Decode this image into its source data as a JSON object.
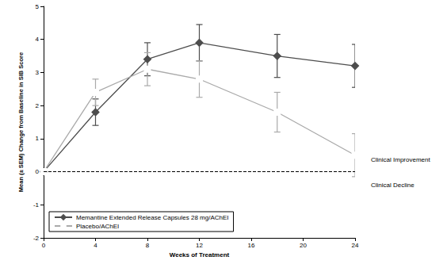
{
  "chart_data": {
    "type": "line",
    "x_label": "Weeks of Treatment",
    "y_label": "Mean (± SEM) Change from Baseline in SIB Score",
    "x": [
      0,
      4,
      8,
      12,
      18,
      24
    ],
    "series": [
      {
        "name": "Memantine Extended Release Capsules 28 mg/AChEI",
        "color": "#4d4d4d",
        "marker": "diamond",
        "values": [
          0,
          1.8,
          3.4,
          3.9,
          3.5,
          3.2
        ],
        "errors": [
          0,
          0.4,
          0.5,
          0.55,
          0.65,
          0.65
        ]
      },
      {
        "name": "Placebo/AChEI",
        "color": "#aaaaaa",
        "marker": "square_open",
        "values": [
          0,
          2.4,
          3.1,
          2.8,
          1.8,
          0.5
        ],
        "errors": [
          0,
          0.4,
          0.5,
          0.55,
          0.6,
          0.65
        ]
      }
    ],
    "xlim": [
      0,
      24
    ],
    "xticks": [
      0,
      4,
      8,
      12,
      16,
      20,
      24
    ],
    "ylim": [
      -2,
      5
    ],
    "yticks": [
      -2,
      -1,
      0,
      1,
      2,
      3,
      4,
      5
    ],
    "grid": false,
    "legend": "lower left",
    "reference_line": {
      "y": 0,
      "line_style": "dashed"
    },
    "annotations": [
      "Clinical Improvement",
      "Clinical Decline"
    ]
  }
}
